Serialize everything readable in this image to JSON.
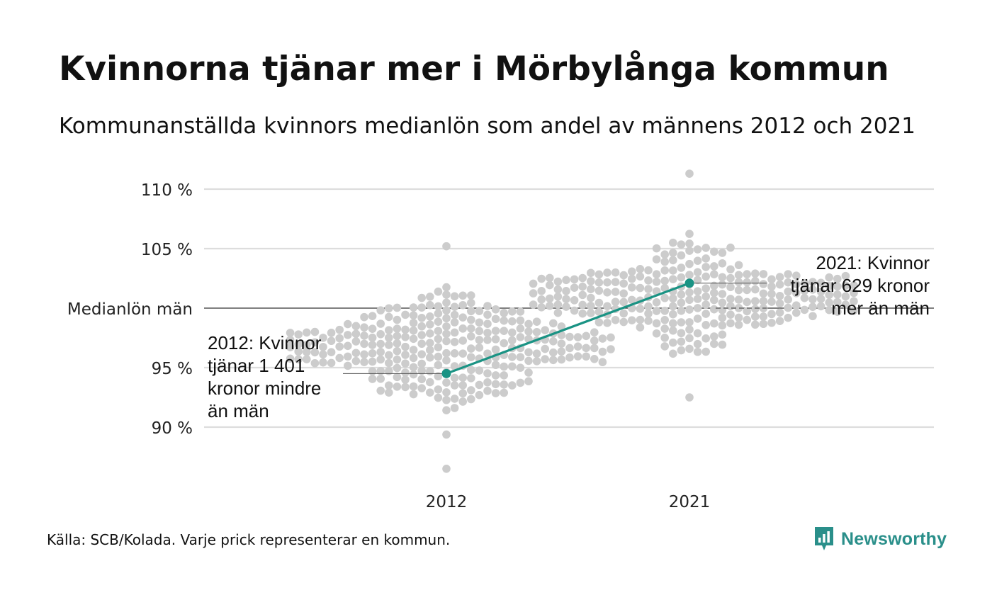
{
  "header": {
    "title": "Kvinnorna tjänar mer i Mörbylånga kommun",
    "subtitle": "Kommunanställda kvinnors medianlön som andel av männens 2012 och 2021"
  },
  "annotations": {
    "left": [
      "2012: Kvinnor",
      "tjänar 1 401",
      "kronor mindre",
      "än män"
    ],
    "right": [
      "2021: Kvinnor",
      "tjänar 629 kronor",
      "mer än män"
    ]
  },
  "footer": {
    "source": "Källa: SCB/Kolada. Varje prick representerar en kommun."
  },
  "logo": {
    "text": "Newsworthy",
    "color": "#2a8f8a"
  },
  "chart_data": {
    "type": "scatter",
    "categories": [
      "2012",
      "2021"
    ],
    "yticks": [
      {
        "value": 110,
        "label": "110 %"
      },
      {
        "value": 105,
        "label": "105 %"
      },
      {
        "value": 100,
        "label": "Medianlön män"
      },
      {
        "value": 95,
        "label": "95 %"
      },
      {
        "value": 90,
        "label": "90 %"
      }
    ],
    "ylim": [
      86,
      112
    ],
    "reference_line": {
      "value": 100,
      "label": "Medianlön män"
    },
    "grid": true,
    "highlight": {
      "name": "Mörbylånga kommun",
      "color": "#1a9384",
      "points": [
        {
          "x": "2012",
          "y": 94.5
        },
        {
          "x": "2021",
          "y": 102.1
        }
      ]
    },
    "distributions": [
      {
        "category": "2012",
        "min": 86.5,
        "max": 105.2,
        "center": 96.5,
        "spread": 2.8
      },
      {
        "category": "2021",
        "min": 92.5,
        "max": 111.3,
        "center": 101.0,
        "spread": 2.6
      }
    ],
    "dot_color": "#cccccc"
  }
}
